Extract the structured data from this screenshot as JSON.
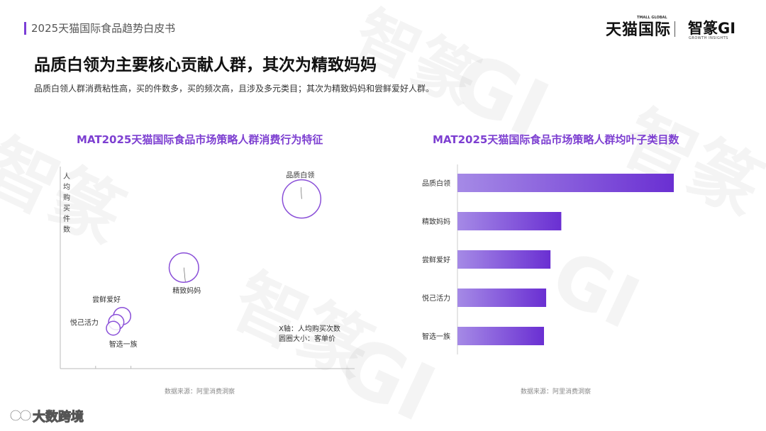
{
  "header": {
    "report_title": "2025天猫国际食品趋势白皮书",
    "brand_tmall": "天猫国际",
    "brand_tmall_small": "TMALL GLOBAL",
    "brand_gi": "智篆GI",
    "brand_gi_small": "GROWTH INSIGHTS"
  },
  "main": {
    "title": "品质白领为主要核心贡献人群，其次为精致妈妈",
    "subtitle": "品质白领人群消费粘性高，买的件数多，买的频次高，且涉及多元类目；其次为精致妈妈和尝鲜爱好人群。"
  },
  "footer": {
    "source_left": "数据来源：阿里消费洞察",
    "source_right": "数据来源：阿里消费洞察",
    "logo_text": "大数跨境"
  },
  "colors": {
    "accent": "#7b3fd6",
    "bubble_stroke": "#8a4fd8",
    "bar_start": "#a58ae6",
    "bar_end": "#6a2fd2"
  },
  "chart_data": [
    {
      "type": "scatter",
      "title": "MAT2025天猫国际食品市场策略人群消费行为特征",
      "ylabel": "人均购买件数",
      "notes": [
        "X轴：人均购买次数",
        "圆圈大小：客单价"
      ],
      "points": [
        {
          "label": "品质白领",
          "x": 8.2,
          "y": 8.4,
          "size": 1.0
        },
        {
          "label": "精致妈妈",
          "x": 4.2,
          "y": 5.0,
          "size": 0.77
        },
        {
          "label": "尝鲜爱好",
          "x": 2.1,
          "y": 2.6,
          "size": 0.45
        },
        {
          "label": "悦己活力",
          "x": 1.9,
          "y": 2.3,
          "size": 0.4
        },
        {
          "label": "智选一族",
          "x": 1.8,
          "y": 2.0,
          "size": 0.36
        }
      ]
    },
    {
      "type": "bar",
      "orientation": "horizontal",
      "title": "MAT2025天猫国际食品市场策略人群均叶子类目数",
      "categories": [
        "品质白领",
        "精致妈妈",
        "尝鲜爱好",
        "悦己活力",
        "智选一族"
      ],
      "values": [
        100,
        48,
        43,
        41,
        40
      ]
    }
  ]
}
